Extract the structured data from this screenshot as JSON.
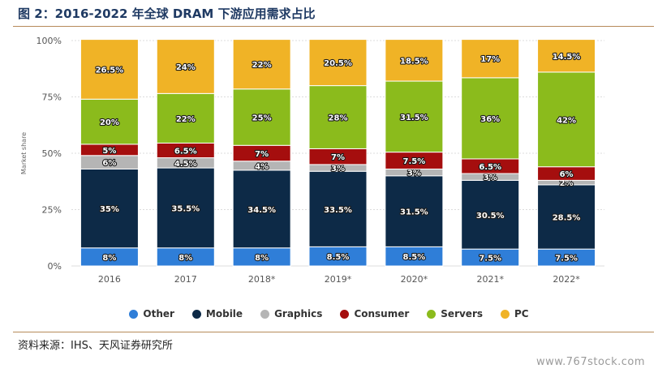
{
  "title": "图 2：2016-2022 年全球 DRAM 下游应用需求占比",
  "source": "资料来源：IHS、天风证券研究所",
  "watermark": "www.767stock.com",
  "chart_data": {
    "type": "bar",
    "stacked": true,
    "ylabel": "Market share",
    "ylim": [
      0,
      100
    ],
    "yticks": [
      "0%",
      "25%",
      "50%",
      "75%",
      "100%"
    ],
    "grid": true,
    "legend_placement": "bottom",
    "categories": [
      "2016",
      "2017",
      "2018*",
      "2019*",
      "2020*",
      "2021*",
      "2022*"
    ],
    "series": [
      {
        "name": "Other",
        "color": "#2f7ed8",
        "values": [
          8,
          8,
          8,
          8.5,
          8.5,
          7.5,
          7.5
        ],
        "labels": [
          "8%",
          "8%",
          "8%",
          "8.5%",
          "8.5%",
          "7.5%",
          "7.5%"
        ]
      },
      {
        "name": "Mobile",
        "color": "#0d2a47",
        "values": [
          35,
          35.5,
          34.5,
          33.5,
          31.5,
          30.5,
          28.5
        ],
        "labels": [
          "35%",
          "35.5%",
          "34.5%",
          "33.5%",
          "31.5%",
          "30.5%",
          "28.5%"
        ]
      },
      {
        "name": "Graphics",
        "color": "#b5b5b5",
        "values": [
          6,
          4.5,
          4,
          3,
          3,
          3,
          2
        ],
        "labels": [
          "6%",
          "4.5%",
          "4%",
          "3%",
          "3%",
          "3%",
          "2%"
        ]
      },
      {
        "name": "Consumer",
        "color": "#a50e0e",
        "values": [
          5,
          6.5,
          7,
          7,
          7.5,
          6.5,
          6
        ],
        "labels": [
          "5%",
          "6.5%",
          "7%",
          "7%",
          "7.5%",
          "6.5%",
          "6%"
        ]
      },
      {
        "name": "Servers",
        "color": "#8bbb1c",
        "values": [
          20,
          22,
          25,
          28,
          31.5,
          36,
          42
        ],
        "labels": [
          "20%",
          "22%",
          "25%",
          "28%",
          "31.5%",
          "36%",
          "42%"
        ]
      },
      {
        "name": "PC",
        "color": "#f0b326",
        "values": [
          26.5,
          24,
          22,
          20.5,
          18.5,
          17,
          14.5
        ],
        "labels": [
          "26.5%",
          "24%",
          "22%",
          "20.5%",
          "18.5%",
          "17%",
          "14.5%"
        ]
      }
    ]
  }
}
